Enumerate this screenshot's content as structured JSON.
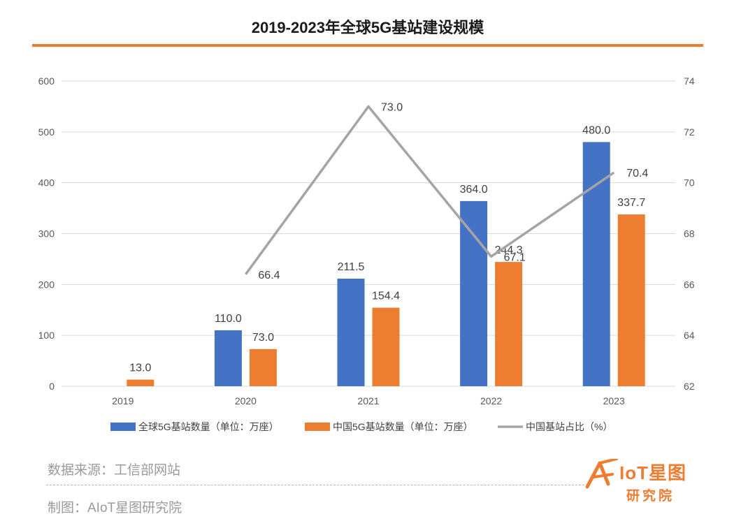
{
  "title": "2019-2023年全球5G基站建设规模",
  "colors": {
    "accent": "#EF7D31",
    "global_bar": "#4472C4",
    "china_bar": "#ED7D31",
    "ratio_line": "#A5A5A5"
  },
  "chart_data": {
    "type": "bar",
    "categories": [
      "2019",
      "2020",
      "2021",
      "2022",
      "2023"
    ],
    "series": [
      {
        "name": "全球5G基站数量（单位：万座）",
        "kind": "bar",
        "axis": "left",
        "values": [
          null,
          110.0,
          211.5,
          364.0,
          480.0
        ],
        "labels": [
          "",
          "110.0",
          "211.5",
          "364.0",
          "480.0"
        ]
      },
      {
        "name": "中国5G基站数量（单位：万座）",
        "kind": "bar",
        "axis": "left",
        "values": [
          13.0,
          73.0,
          154.4,
          244.3,
          337.7
        ],
        "labels": [
          "13.0",
          "73.0",
          "154.4",
          "244.3",
          "337.7"
        ]
      },
      {
        "name": "中国基站占比（%）",
        "kind": "line",
        "axis": "right",
        "values": [
          null,
          66.4,
          73.0,
          67.1,
          70.4
        ],
        "labels": [
          "",
          "66.4",
          "73.0",
          "67.1",
          "70.4"
        ]
      }
    ],
    "y_left": {
      "min": 0,
      "max": 600,
      "ticks": [
        "0",
        "100",
        "200",
        "300",
        "400",
        "500",
        "600"
      ]
    },
    "y_right": {
      "min": 62,
      "max": 74,
      "ticks": [
        "62",
        "64",
        "66",
        "68",
        "70",
        "72",
        "74"
      ]
    },
    "grid": true,
    "legend": "bottom"
  },
  "footer": {
    "source": "数据来源：工信部网站",
    "credit": "制图：AIoT星图研究院"
  },
  "logo": {
    "name": "IoT星图",
    "subtitle": "研究院"
  }
}
